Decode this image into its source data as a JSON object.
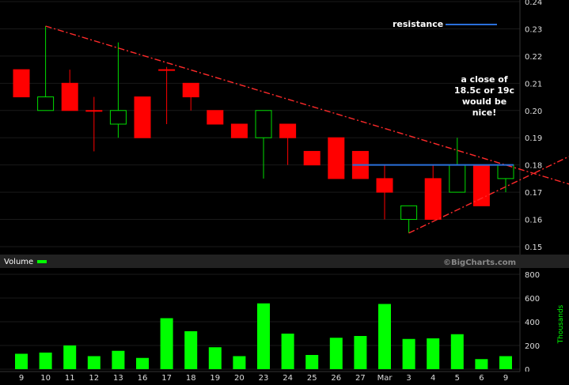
{
  "chart_data": [
    {
      "type": "candlestick",
      "ylim": [
        0.15,
        0.24
      ],
      "yticks": [
        0.15,
        0.16,
        0.17,
        0.18,
        0.19,
        0.2,
        0.21,
        0.22,
        0.23,
        0.24
      ],
      "ytick_labels": [
        "0.15",
        "0.16",
        "0.17",
        "0.18",
        "0.19",
        "0.20",
        "0.21",
        "0.22",
        "0.23",
        "0.24"
      ],
      "candles": [
        {
          "date": "9",
          "open": 0.205,
          "high": 0.215,
          "low": 0.205,
          "close": 0.215,
          "color": "red"
        },
        {
          "date": "10",
          "open": 0.2,
          "high": 0.231,
          "low": 0.2,
          "close": 0.205,
          "color": "green"
        },
        {
          "date": "11",
          "open": 0.21,
          "high": 0.215,
          "low": 0.2,
          "close": 0.2,
          "color": "red"
        },
        {
          "date": "12",
          "open": 0.2,
          "high": 0.205,
          "low": 0.185,
          "close": 0.2,
          "color": "red"
        },
        {
          "date": "13",
          "open": 0.195,
          "high": 0.225,
          "low": 0.19,
          "close": 0.2,
          "color": "green"
        },
        {
          "date": "16",
          "open": 0.205,
          "high": 0.205,
          "low": 0.19,
          "close": 0.19,
          "color": "red"
        },
        {
          "date": "17",
          "open": 0.215,
          "high": 0.216,
          "low": 0.195,
          "close": 0.215,
          "color": "red"
        },
        {
          "date": "18",
          "open": 0.21,
          "high": 0.21,
          "low": 0.2,
          "close": 0.205,
          "color": "red"
        },
        {
          "date": "19",
          "open": 0.2,
          "high": 0.2,
          "low": 0.195,
          "close": 0.195,
          "color": "red"
        },
        {
          "date": "20",
          "open": 0.195,
          "high": 0.195,
          "low": 0.19,
          "close": 0.19,
          "color": "red"
        },
        {
          "date": "23",
          "open": 0.19,
          "high": 0.2,
          "low": 0.175,
          "close": 0.2,
          "color": "green"
        },
        {
          "date": "24",
          "open": 0.195,
          "high": 0.195,
          "low": 0.18,
          "close": 0.19,
          "color": "red"
        },
        {
          "date": "25",
          "open": 0.185,
          "high": 0.185,
          "low": 0.18,
          "close": 0.18,
          "color": "red"
        },
        {
          "date": "26",
          "open": 0.19,
          "high": 0.19,
          "low": 0.175,
          "close": 0.175,
          "color": "red"
        },
        {
          "date": "27",
          "open": 0.185,
          "high": 0.185,
          "low": 0.175,
          "close": 0.175,
          "color": "red"
        },
        {
          "date": "Mar",
          "open": 0.175,
          "high": 0.18,
          "low": 0.16,
          "close": 0.17,
          "color": "red"
        },
        {
          "date": "3",
          "open": 0.16,
          "high": 0.165,
          "low": 0.155,
          "close": 0.165,
          "color": "green"
        },
        {
          "date": "4",
          "open": 0.175,
          "high": 0.18,
          "low": 0.16,
          "close": 0.16,
          "color": "red"
        },
        {
          "date": "5",
          "open": 0.17,
          "high": 0.19,
          "low": 0.17,
          "close": 0.18,
          "color": "green"
        },
        {
          "date": "6",
          "open": 0.18,
          "high": 0.18,
          "low": 0.165,
          "close": 0.165,
          "color": "red"
        },
        {
          "date": "9",
          "open": 0.175,
          "high": 0.18,
          "low": 0.17,
          "close": 0.18,
          "color": "green"
        }
      ],
      "resistance": {
        "label": "resistance",
        "value": 0.18,
        "from": "27",
        "to": "9",
        "color": "#2a6fdb"
      },
      "trendlines": [
        {
          "from_date": "10",
          "from_value": 0.231,
          "to_date": "9",
          "to_value": 0.18,
          "extends_right": true,
          "color": "#ff2a2a",
          "style": "dashdot"
        },
        {
          "from_date": "3",
          "from_value": 0.155,
          "to_date": "9",
          "to_value": 0.172,
          "extends_right": true,
          "color": "#ff2a2a",
          "style": "dashdot"
        }
      ],
      "annotation": [
        "a close of",
        "18.5c or 19c",
        "would be",
        "nice!"
      ]
    },
    {
      "type": "bar",
      "legend": "Volume",
      "ylabel": "Thousands",
      "ylim": [
        0,
        800
      ],
      "yticks": [
        0,
        200,
        400,
        600,
        800
      ],
      "ytick_labels": [
        "0",
        "200",
        "400",
        "600",
        "800"
      ],
      "categories": [
        "9",
        "10",
        "11",
        "12",
        "13",
        "16",
        "17",
        "18",
        "19",
        "20",
        "23",
        "24",
        "25",
        "26",
        "27",
        "Mar",
        "3",
        "4",
        "5",
        "6",
        "9"
      ],
      "values": [
        130,
        140,
        200,
        110,
        155,
        95,
        430,
        320,
        185,
        110,
        555,
        300,
        120,
        265,
        280,
        550,
        255,
        260,
        295,
        85,
        110
      ],
      "color": "#00ff00"
    }
  ],
  "watermark": "©BigCharts.com"
}
